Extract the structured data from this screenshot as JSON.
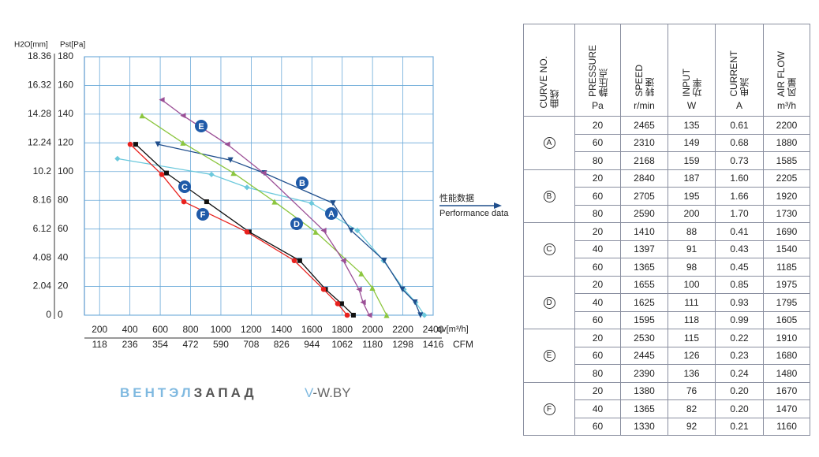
{
  "chart_data": {
    "type": "line",
    "y_label": "Pst[Pa]",
    "y2_label": "H2O[mm]",
    "x_label": "qv[m³/h]",
    "x2_label": "CFM",
    "xlim": [
      100,
      2400
    ],
    "xticks": [
      200,
      400,
      600,
      800,
      1000,
      1200,
      1400,
      1600,
      1800,
      2000,
      2200,
      2400
    ],
    "x2lim": [
      59,
      1416
    ],
    "x2ticks": [
      118,
      236,
      354,
      472,
      590,
      708,
      826,
      944,
      1062,
      1180,
      1298,
      1416
    ],
    "ylim": [
      0,
      180
    ],
    "yticks": [
      0,
      20,
      40,
      60,
      80,
      100,
      120,
      140,
      160,
      180
    ],
    "y2lim": [
      0,
      18.36
    ],
    "y2ticks": [
      0,
      2.04,
      4.08,
      6.12,
      8.16,
      10.2,
      12.24,
      14.28,
      16.32,
      18.36
    ],
    "grid": true,
    "annotation": {
      "zh": "性能数据",
      "en": "Performance data"
    },
    "series": [
      {
        "name": "A",
        "color": "#6cc9dc",
        "marker": "diamond",
        "x": [
          318,
          938,
          1172,
          1598,
          1900,
          2072,
          2207,
          2285,
          2342
        ],
        "values": [
          109,
          98,
          89,
          78,
          59,
          38,
          18,
          9,
          0
        ]
      },
      {
        "name": "B",
        "color": "#1f4e8c",
        "marker": "triangle-down",
        "x": [
          584,
          1063,
          1286,
          1739,
          1859,
          2077,
          2197,
          2280,
          2316
        ],
        "values": [
          119,
          108,
          99,
          78,
          59,
          38,
          18,
          9,
          0
        ]
      },
      {
        "name": "C",
        "color": "#111111",
        "marker": "square",
        "x": [
          438,
          641,
          906,
          1187,
          1520,
          1690,
          1796,
          1874
        ],
        "values": [
          119,
          99,
          79,
          58,
          38,
          18,
          8,
          0
        ]
      },
      {
        "name": "D",
        "color": "#8cc63f",
        "marker": "triangle-up",
        "x": [
          480,
          750,
          1083,
          1354,
          1625,
          1926,
          1999,
          2093
        ],
        "values": [
          139,
          120,
          99,
          79,
          58,
          29,
          19,
          0
        ]
      },
      {
        "name": "E",
        "color": "#9b4f96",
        "marker": "triangle-left",
        "x": [
          610,
          750,
          1042,
          1281,
          1677,
          1807,
          1911,
          1937,
          1978
        ],
        "values": [
          150,
          139,
          119,
          99,
          59,
          38,
          18,
          9,
          0
        ]
      },
      {
        "name": "F",
        "color": "#e8211d",
        "marker": "circle",
        "x": [
          402,
          610,
          756,
          1172,
          1484,
          1677,
          1770,
          1833
        ],
        "values": [
          119,
          98,
          79,
          58,
          38,
          18,
          8,
          0
        ]
      }
    ]
  },
  "logo": {
    "part1": "ВЕНТЭЛ",
    "part2": "ЗАПАД",
    "site1": "V",
    "site2": "-W.BY"
  },
  "table": {
    "headers": [
      {
        "en": "CURVE NO.",
        "zh": "曲线"
      },
      {
        "en": "PRESSURE",
        "zh": "静压点"
      },
      {
        "en": "SPEED",
        "zh": "转速"
      },
      {
        "en": "INPUT",
        "zh": "功率"
      },
      {
        "en": "CURRENT",
        "zh": "电流"
      },
      {
        "en": "AIR FLOW",
        "zh": "风量"
      }
    ],
    "units": [
      "Pa",
      "r/min",
      "W",
      "A",
      "m³/h"
    ],
    "groups": [
      {
        "curve": "A",
        "rows": [
          [
            "20",
            "2465",
            "135",
            "0.61",
            "2200"
          ],
          [
            "60",
            "2310",
            "149",
            "0.68",
            "1880"
          ],
          [
            "80",
            "2168",
            "159",
            "0.73",
            "1585"
          ]
        ]
      },
      {
        "curve": "B",
        "rows": [
          [
            "20",
            "2840",
            "187",
            "1.60",
            "2205"
          ],
          [
            "60",
            "2705",
            "195",
            "1.66",
            "1920"
          ],
          [
            "80",
            "2590",
            "200",
            "1.70",
            "1730"
          ]
        ]
      },
      {
        "curve": "C",
        "rows": [
          [
            "20",
            "1410",
            "88",
            "0.41",
            "1690"
          ],
          [
            "40",
            "1397",
            "91",
            "0.43",
            "1540"
          ],
          [
            "60",
            "1365",
            "98",
            "0.45",
            "1185"
          ]
        ]
      },
      {
        "curve": "D",
        "rows": [
          [
            "20",
            "1655",
            "100",
            "0.85",
            "1975"
          ],
          [
            "40",
            "1625",
            "111",
            "0.93",
            "1795"
          ],
          [
            "60",
            "1595",
            "118",
            "0.99",
            "1605"
          ]
        ]
      },
      {
        "curve": "E",
        "rows": [
          [
            "20",
            "2530",
            "115",
            "0.22",
            "1910"
          ],
          [
            "60",
            "2445",
            "126",
            "0.23",
            "1680"
          ],
          [
            "80",
            "2390",
            "136",
            "0.24",
            "1480"
          ]
        ]
      },
      {
        "curve": "F",
        "rows": [
          [
            "20",
            "1380",
            "76",
            "0.20",
            "1670"
          ],
          [
            "40",
            "1365",
            "82",
            "0.20",
            "1470"
          ],
          [
            "60",
            "1330",
            "92",
            "0.21",
            "1160"
          ]
        ]
      }
    ]
  }
}
